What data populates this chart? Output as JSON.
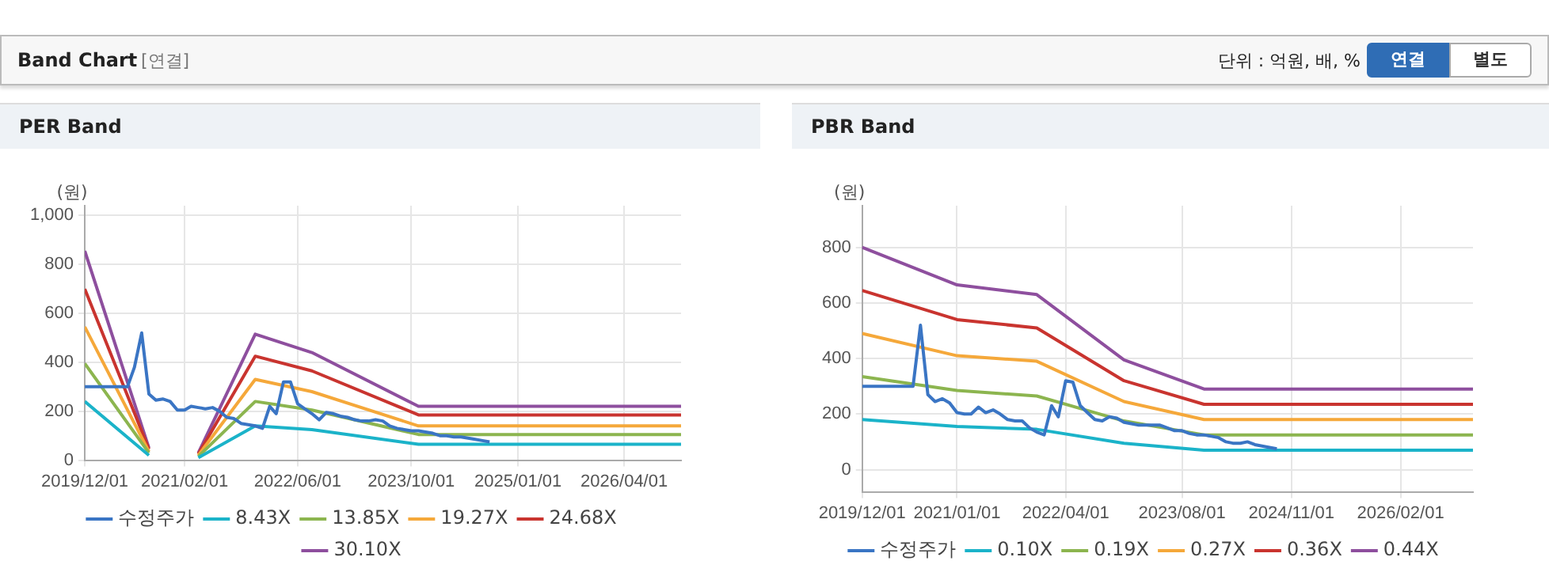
{
  "chart_data": [
    {
      "type": "line",
      "title": "PER Band",
      "ylabel": "(원)",
      "annotations": [
        "Band Chart",
        "[연결]",
        "단위 : 억원, 배, %",
        "연결",
        "별도"
      ],
      "xlim": [
        "2019-12-01",
        "2026-12-01"
      ],
      "xticks": [
        {
          "value": "2019-12-01",
          "label": "2019/12/01"
        },
        {
          "value": "2021-02-01",
          "label": "2021/02/01"
        },
        {
          "value": "2022-06-01",
          "label": "2022/06/01"
        },
        {
          "value": "2023-10-01",
          "label": "2023/10/01"
        },
        {
          "value": "2025-01-01",
          "label": "2025/01/01"
        },
        {
          "value": "2026-04-01",
          "label": "2026/04/01"
        }
      ],
      "ylim": [
        0,
        1040
      ],
      "yticks": [
        0,
        200,
        400,
        600,
        800,
        {
          "value": 1000,
          "label": "1,000"
        }
      ],
      "grid": true,
      "legend": "bottom",
      "marker": "none",
      "line_style": "solid",
      "series": [
        {
          "name": "수정주가",
          "color": "#3a75c4",
          "x": [
            "2019-12",
            "2020-01",
            "2020-02",
            "2020-03",
            "2020-04",
            "2020-05",
            "2020-06",
            "2020-07",
            "2020-08",
            "2020-09",
            "2020-10",
            "2020-11",
            "2020-12",
            "2021-01",
            "2021-02",
            "2021-03",
            "2021-04",
            "2021-05",
            "2021-06",
            "2021-07",
            "2021-08",
            "2021-09",
            "2021-10",
            "2021-11",
            "2021-12",
            "2022-01",
            "2022-02",
            "2022-03",
            "2022-04",
            "2022-05",
            "2022-06",
            "2022-07",
            "2022-08",
            "2022-09",
            "2022-10",
            "2022-11",
            "2022-12",
            "2023-01",
            "2023-02",
            "2023-03",
            "2023-04",
            "2023-05",
            "2023-06",
            "2023-07",
            "2023-08",
            "2023-09",
            "2023-10",
            "2023-11",
            "2023-12",
            "2024-01",
            "2024-02",
            "2024-03",
            "2024-04",
            "2024-05",
            "2024-06",
            "2024-07",
            "2024-08",
            "2024-09"
          ],
          "values": [
            300,
            300,
            300,
            300,
            300,
            300,
            300,
            380,
            520,
            270,
            245,
            250,
            240,
            205,
            205,
            220,
            215,
            210,
            215,
            200,
            175,
            170,
            150,
            145,
            140,
            130,
            220,
            190,
            320,
            320,
            230,
            210,
            190,
            165,
            195,
            190,
            180,
            175,
            165,
            160,
            160,
            165,
            160,
            140,
            130,
            125,
            120,
            120,
            115,
            110,
            100,
            100,
            95,
            95,
            90,
            85,
            80,
            75
          ]
        },
        {
          "name": "8.43X",
          "color": "#1bb3c9",
          "x": [
            "2019-12",
            "2020-09",
            "2020-12",
            "2021-04",
            "2021-12",
            "2022-08",
            "2023-11",
            "2026-12"
          ],
          "values": [
            240,
            20,
            null,
            10,
            140,
            125,
            65,
            65
          ]
        },
        {
          "name": "13.85X",
          "color": "#8cb54f",
          "x": [
            "2019-12",
            "2020-09",
            "2020-12",
            "2021-04",
            "2021-12",
            "2022-08",
            "2023-11",
            "2026-12"
          ],
          "values": [
            395,
            30,
            null,
            15,
            240,
            205,
            105,
            105
          ]
        },
        {
          "name": "19.27X",
          "color": "#f5a83a",
          "x": [
            "2019-12",
            "2020-09",
            "2020-12",
            "2021-04",
            "2021-12",
            "2022-08",
            "2023-11",
            "2026-12"
          ],
          "values": [
            545,
            35,
            null,
            20,
            330,
            280,
            140,
            140
          ]
        },
        {
          "name": "24.68X",
          "color": "#c9342f",
          "x": [
            "2019-12",
            "2020-09",
            "2020-12",
            "2021-04",
            "2021-12",
            "2022-08",
            "2023-11",
            "2026-12"
          ],
          "values": [
            700,
            45,
            null,
            25,
            425,
            365,
            185,
            185
          ]
        },
        {
          "name": "30.10X",
          "color": "#8e4f9e",
          "x": [
            "2019-12",
            "2020-09",
            "2020-12",
            "2021-04",
            "2021-12",
            "2022-08",
            "2023-11",
            "2026-12"
          ],
          "values": [
            855,
            50,
            null,
            30,
            515,
            440,
            220,
            220
          ]
        }
      ]
    },
    {
      "type": "line",
      "title": "PBR Band",
      "ylabel": "(원)",
      "xlim": [
        "2019-12-01",
        "2026-12-01"
      ],
      "xticks": [
        {
          "value": "2019-12-01",
          "label": "2019/12/01"
        },
        {
          "value": "2021-01-01",
          "label": "2021/01/01"
        },
        {
          "value": "2022-04-01",
          "label": "2022/04/01"
        },
        {
          "value": "2023-08-01",
          "label": "2023/08/01"
        },
        {
          "value": "2024-11-01",
          "label": "2024/11/01"
        },
        {
          "value": "2026-02-01",
          "label": "2026/02/01"
        }
      ],
      "ylim": [
        -80,
        950
      ],
      "yticks": [
        0,
        200,
        400,
        600,
        800
      ],
      "grid": true,
      "legend": "bottom",
      "marker": "none",
      "line_style": "solid",
      "series": [
        {
          "name": "수정주가",
          "color": "#3a75c4",
          "x": [
            "2019-12",
            "2020-01",
            "2020-02",
            "2020-03",
            "2020-04",
            "2020-05",
            "2020-06",
            "2020-07",
            "2020-08",
            "2020-09",
            "2020-10",
            "2020-11",
            "2020-12",
            "2021-01",
            "2021-02",
            "2021-03",
            "2021-04",
            "2021-05",
            "2021-06",
            "2021-07",
            "2021-08",
            "2021-09",
            "2021-10",
            "2021-11",
            "2021-12",
            "2022-01",
            "2022-02",
            "2022-03",
            "2022-04",
            "2022-05",
            "2022-06",
            "2022-07",
            "2022-08",
            "2022-09",
            "2022-10",
            "2022-11",
            "2022-12",
            "2023-01",
            "2023-02",
            "2023-03",
            "2023-04",
            "2023-05",
            "2023-06",
            "2023-07",
            "2023-08",
            "2023-09",
            "2023-10",
            "2023-11",
            "2023-12",
            "2024-01",
            "2024-02",
            "2024-03",
            "2024-04",
            "2024-05",
            "2024-06",
            "2024-07",
            "2024-08",
            "2024-09"
          ],
          "values": [
            300,
            300,
            300,
            300,
            300,
            300,
            300,
            300,
            520,
            270,
            245,
            255,
            240,
            205,
            200,
            200,
            225,
            205,
            215,
            200,
            180,
            175,
            175,
            150,
            135,
            125,
            230,
            190,
            320,
            315,
            230,
            205,
            180,
            175,
            190,
            185,
            170,
            165,
            160,
            160,
            160,
            160,
            150,
            140,
            140,
            130,
            125,
            125,
            120,
            115,
            100,
            95,
            95,
            100,
            90,
            85,
            80,
            75
          ]
        },
        {
          "name": "0.10X",
          "color": "#1bb3c9",
          "x": [
            "2019-12",
            "2021-01",
            "2021-12",
            "2022-12",
            "2023-11",
            "2026-12"
          ],
          "values": [
            180,
            155,
            145,
            95,
            70,
            70
          ]
        },
        {
          "name": "0.19X",
          "color": "#8cb54f",
          "x": [
            "2019-12",
            "2021-01",
            "2021-12",
            "2022-12",
            "2023-11",
            "2026-12"
          ],
          "values": [
            335,
            285,
            265,
            175,
            125,
            125
          ]
        },
        {
          "name": "0.27X",
          "color": "#f5a83a",
          "x": [
            "2019-12",
            "2021-01",
            "2021-12",
            "2022-12",
            "2023-11",
            "2026-12"
          ],
          "values": [
            490,
            410,
            390,
            245,
            180,
            180
          ]
        },
        {
          "name": "0.36X",
          "color": "#c9342f",
          "x": [
            "2019-12",
            "2021-01",
            "2021-12",
            "2022-12",
            "2023-11",
            "2026-12"
          ],
          "values": [
            645,
            540,
            510,
            320,
            235,
            235
          ]
        },
        {
          "name": "0.44X",
          "color": "#8e4f9e",
          "x": [
            "2019-12",
            "2021-01",
            "2021-12",
            "2022-12",
            "2023-11",
            "2026-12"
          ],
          "values": [
            800,
            665,
            630,
            395,
            290,
            290
          ]
        }
      ]
    }
  ]
}
